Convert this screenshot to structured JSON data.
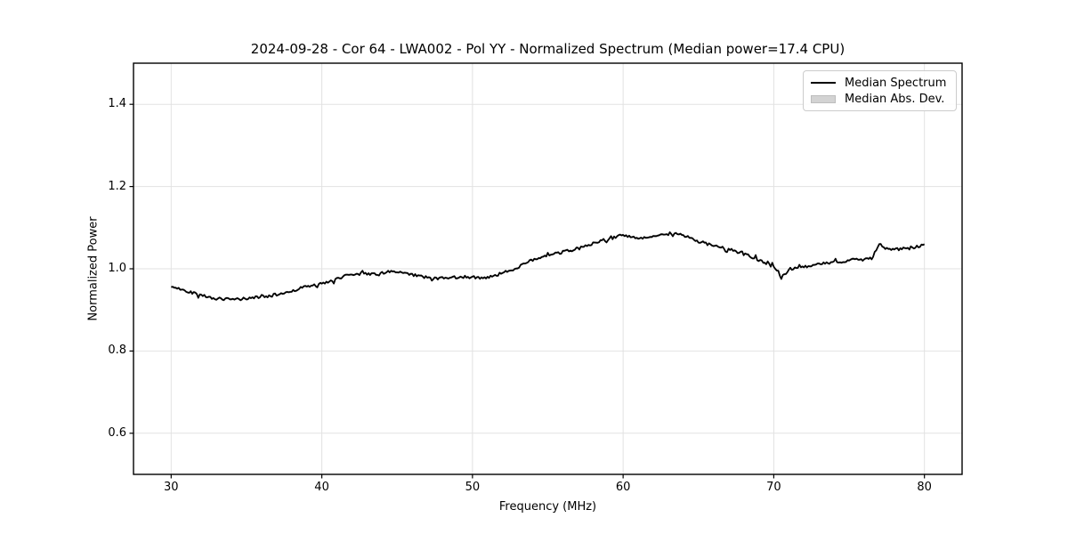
{
  "figure": {
    "title": "2024-09-28 - Cor 64 - LWA002 - Pol YY - Normalized Spectrum (Median power=17.4 CPU)",
    "xlabel": "Frequency (MHz)",
    "ylabel": "Normalized Power"
  },
  "legend": {
    "position": "upper right",
    "items": [
      {
        "label": "Median Spectrum",
        "type": "line",
        "color": "#000000"
      },
      {
        "label": "Median Abs. Dev.",
        "type": "patch",
        "color": "#d3d3d3"
      }
    ]
  },
  "colors": {
    "line": "#000000",
    "band": "#d3d3d3",
    "grid": "#e2e2e2",
    "frame": "#000000",
    "background": "#ffffff"
  },
  "chart_data": {
    "type": "line",
    "title": "2024-09-28 - Cor 64 - LWA002 - Pol YY - Normalized Spectrum (Median power=17.4 CPU)",
    "xlabel": "Frequency (MHz)",
    "ylabel": "Normalized Power",
    "xlim": [
      27.5,
      82.5
    ],
    "ylim": [
      0.5,
      1.5
    ],
    "xticks": [
      30,
      40,
      50,
      60,
      70,
      80
    ],
    "yticks": [
      0.6,
      0.8,
      1.0,
      1.2,
      1.4
    ],
    "grid": true,
    "legend_position": "upper right",
    "series": [
      {
        "name": "Median Spectrum",
        "color": "#000000",
        "line_width": 1.8,
        "x_start": 30.0,
        "x_step": 0.5,
        "y": [
          0.956,
          0.951,
          0.947,
          0.941,
          0.936,
          0.931,
          0.928,
          0.926,
          0.925,
          0.926,
          0.928,
          0.93,
          0.932,
          0.934,
          0.937,
          0.941,
          0.946,
          0.952,
          0.957,
          0.96,
          0.963,
          0.968,
          0.975,
          0.983,
          0.987,
          0.988,
          0.988,
          0.987,
          0.989,
          0.993,
          0.991,
          0.988,
          0.985,
          0.982,
          0.979,
          0.977,
          0.977,
          0.978,
          0.98,
          0.981,
          0.979,
          0.978,
          0.98,
          0.984,
          0.989,
          0.996,
          1.004,
          1.013,
          1.02,
          1.026,
          1.031,
          1.036,
          1.041,
          1.045,
          1.049,
          1.055,
          1.062,
          1.068,
          1.073,
          1.077,
          1.083,
          1.076,
          1.075,
          1.077,
          1.079,
          1.081,
          1.084,
          1.088,
          1.082,
          1.074,
          1.067,
          1.061,
          1.056,
          1.051,
          1.047,
          1.042,
          1.036,
          1.029,
          1.021,
          1.013,
          1.004,
          0.978,
          0.999,
          1.001,
          1.004,
          1.007,
          1.011,
          1.013,
          1.015,
          1.018,
          1.021,
          1.024,
          1.021,
          1.026,
          1.06,
          1.049,
          1.046,
          1.049,
          1.051,
          1.053,
          1.058
        ]
      },
      {
        "name": "Median Abs. Dev.",
        "type": "band",
        "half_width": 0.003,
        "color": "#d3d3d3"
      }
    ],
    "noise": {
      "amplitude": 0.0035,
      "spike_chance": 0.07,
      "spike_gain": 2.8,
      "render_step": 0.1,
      "seed": 42
    }
  }
}
